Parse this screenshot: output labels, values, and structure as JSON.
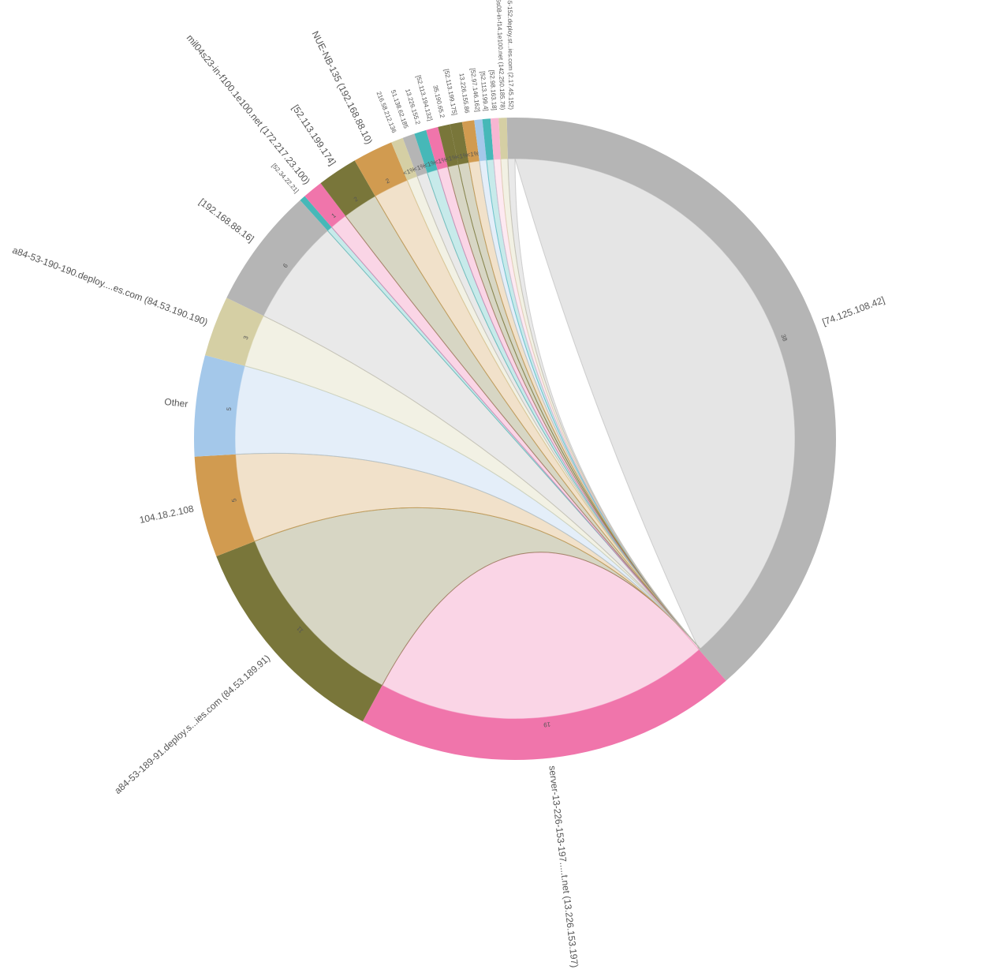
{
  "chart_data": {
    "type": "chord",
    "categories": [
      "[74.125.108.42]",
      "server-13-226-153-197.....t.net (13.226.153.197)",
      "a84-53-189-91.deploy.s...ies.com (84.53.189.91)",
      "104.18.2.108",
      "Other",
      "a84-53-190-190.deploy....es.com (84.53.190.190)",
      "[192.168.88.16]",
      "[52.34.22.21]",
      "mil04s23-in-f100.1e100.net (172.217.23.100)",
      "[52.113.199.174]",
      "NUE-NB-135 (192.168.88.10)",
      "216.58.212.136",
      "51.138.62.185",
      "13.226.155.2",
      "[52.113.194.132]",
      "35.190.65.2",
      "[52.113.199.175]",
      "13.226.155.86",
      "[52.97.146.162]",
      "[52.113.199.4]",
      "[52.98.163.18]",
      "fra16s08-in-f14.1e100.net (142.250.185.78)",
      "a2-17-45-152.deploy.st...ies.com (2.17.45.152)"
    ],
    "values": [
      38,
      19,
      11,
      5,
      5,
      3,
      6,
      0.3,
      1,
      2,
      2,
      0.6,
      0.6,
      0.6,
      0.6,
      0.6,
      0.6,
      0.6,
      0.4,
      0.4,
      0.4,
      0.4,
      0.4
    ],
    "value_labels": [
      "38",
      "19",
      "11",
      "5",
      "5",
      "3",
      "6",
      null,
      "1",
      "2",
      "2",
      "<1%",
      "<1%",
      "<1%",
      "<1%",
      "<1%",
      "<1%",
      "<1%",
      null,
      null,
      null,
      null,
      null
    ],
    "colors": [
      "#b5b5b5",
      "#f075ab",
      "#79763a",
      "#d19b50",
      "#a4c8ea",
      "#d5cfa4",
      "#b5b5b5",
      "#46b8b8",
      "#f075ab",
      "#79763a",
      "#d19b50",
      "#d5cfa4",
      "#b5b5b5",
      "#46b8b8",
      "#f075ab",
      "#79763a",
      "#79763a",
      "#d19b50",
      "#a4c8ea",
      "#46b8b8",
      "#f7b6d2",
      "#d5cfa4",
      "#b5b5b5"
    ]
  }
}
